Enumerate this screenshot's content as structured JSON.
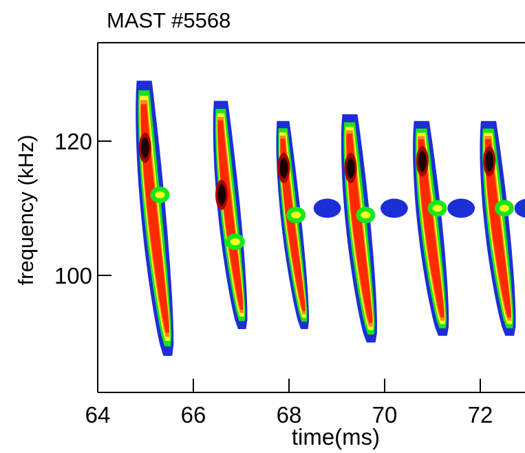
{
  "chart_data": {
    "type": "heatmap",
    "title": "MAST #5568",
    "xlabel": "time(ms)",
    "ylabel": "frequency (kHz)",
    "xlim": [
      64,
      73
    ],
    "ylim": [
      82,
      134
    ],
    "x_ticks": [
      64,
      66,
      68,
      70,
      72
    ],
    "y_ticks": [
      100,
      120
    ],
    "colormap": [
      "#1c2fd6",
      "#19e619",
      "#ffff26",
      "#ff8a1a",
      "#ff2a00",
      "#b00000",
      "#1a0000"
    ],
    "bursts": [
      {
        "time": 65.0,
        "f_top": 129,
        "f_bottom": 88,
        "sweep_ms": 0.5,
        "width_ms": 0.55,
        "core_freq": 119
      },
      {
        "time": 66.6,
        "f_top": 126,
        "f_bottom": 92,
        "sweep_ms": 0.45,
        "width_ms": 0.5,
        "core_freq": 112
      },
      {
        "time": 67.9,
        "f_top": 123,
        "f_bottom": 92,
        "sweep_ms": 0.45,
        "width_ms": 0.45,
        "core_freq": 116
      },
      {
        "time": 69.3,
        "f_top": 124,
        "f_bottom": 90,
        "sweep_ms": 0.45,
        "width_ms": 0.55,
        "core_freq": 116
      },
      {
        "time": 70.8,
        "f_top": 123,
        "f_bottom": 91,
        "sweep_ms": 0.45,
        "width_ms": 0.55,
        "core_freq": 117
      },
      {
        "time": 72.2,
        "f_top": 123,
        "f_bottom": 91,
        "sweep_ms": 0.45,
        "width_ms": 0.55,
        "core_freq": 117
      }
    ]
  }
}
